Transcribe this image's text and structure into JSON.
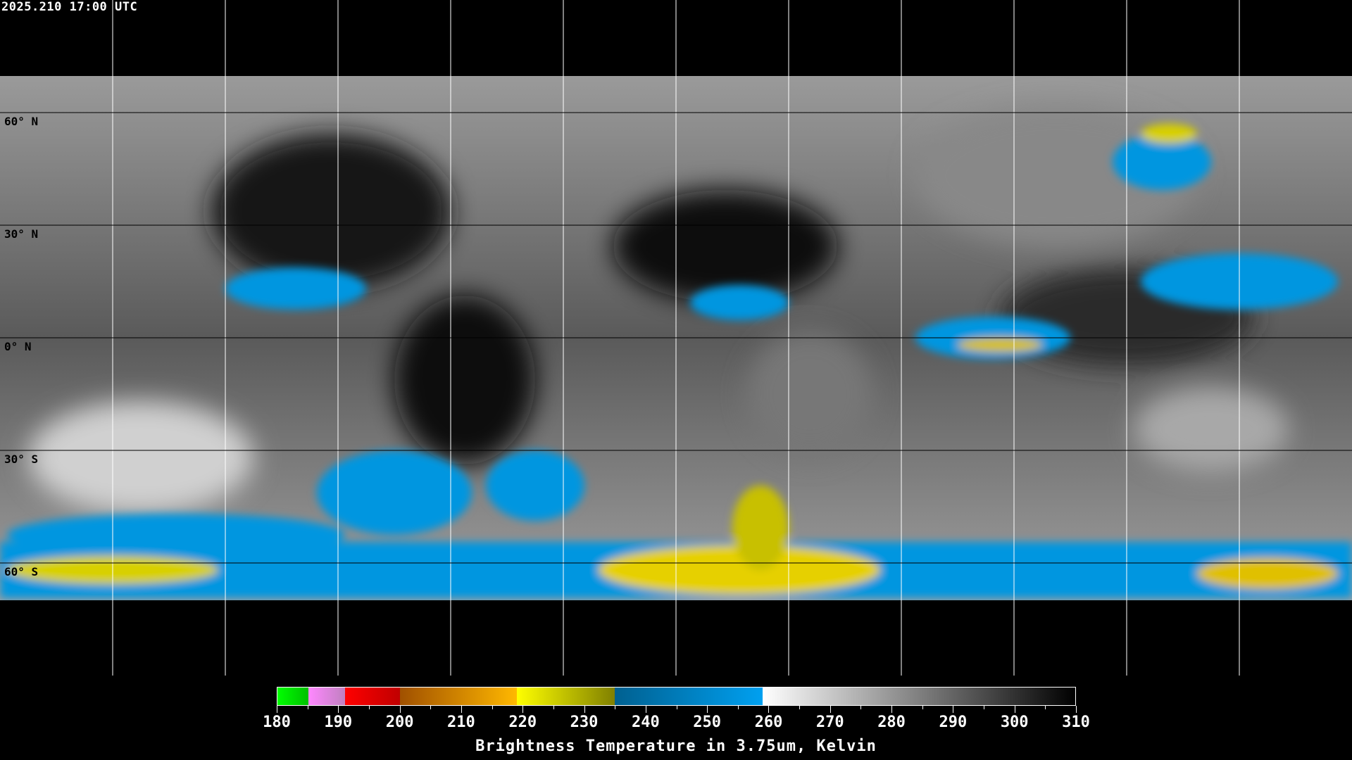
{
  "timestamp": "2025.210 17:00 UTC",
  "latitude_labels": [
    "60° N",
    "30° N",
    "0° N",
    "30° S",
    "60° S"
  ],
  "colorbar": {
    "min": 180,
    "max": 310,
    "tick_labels": [
      "180",
      "190",
      "200",
      "210",
      "220",
      "230",
      "240",
      "250",
      "260",
      "270",
      "280",
      "290",
      "300",
      "310"
    ],
    "title": "Brightness Temperature in 3.75um, Kelvin",
    "segments": [
      {
        "from": 180,
        "to": 185,
        "colors": [
          "#00ff00",
          "#00c000"
        ]
      },
      {
        "from": 185,
        "to": 191,
        "colors": [
          "#ff88ff",
          "#c080c0"
        ]
      },
      {
        "from": 191,
        "to": 200,
        "colors": [
          "#ff0000",
          "#c00000"
        ]
      },
      {
        "from": 200,
        "to": 219,
        "colors": [
          "#a05000",
          "#ffb800"
        ]
      },
      {
        "from": 219,
        "to": 235,
        "colors": [
          "#ffff00",
          "#808000"
        ]
      },
      {
        "from": 235,
        "to": 259,
        "colors": [
          "#006090",
          "#00a0f0"
        ]
      },
      {
        "from": 259,
        "to": 310,
        "colors": [
          "#ffffff",
          "#000000"
        ]
      }
    ]
  },
  "map": {
    "projection": "equirectangular",
    "grid_spacing_deg": 30,
    "grid_color": "#ffffff",
    "coastline_color": "#ffffff"
  }
}
